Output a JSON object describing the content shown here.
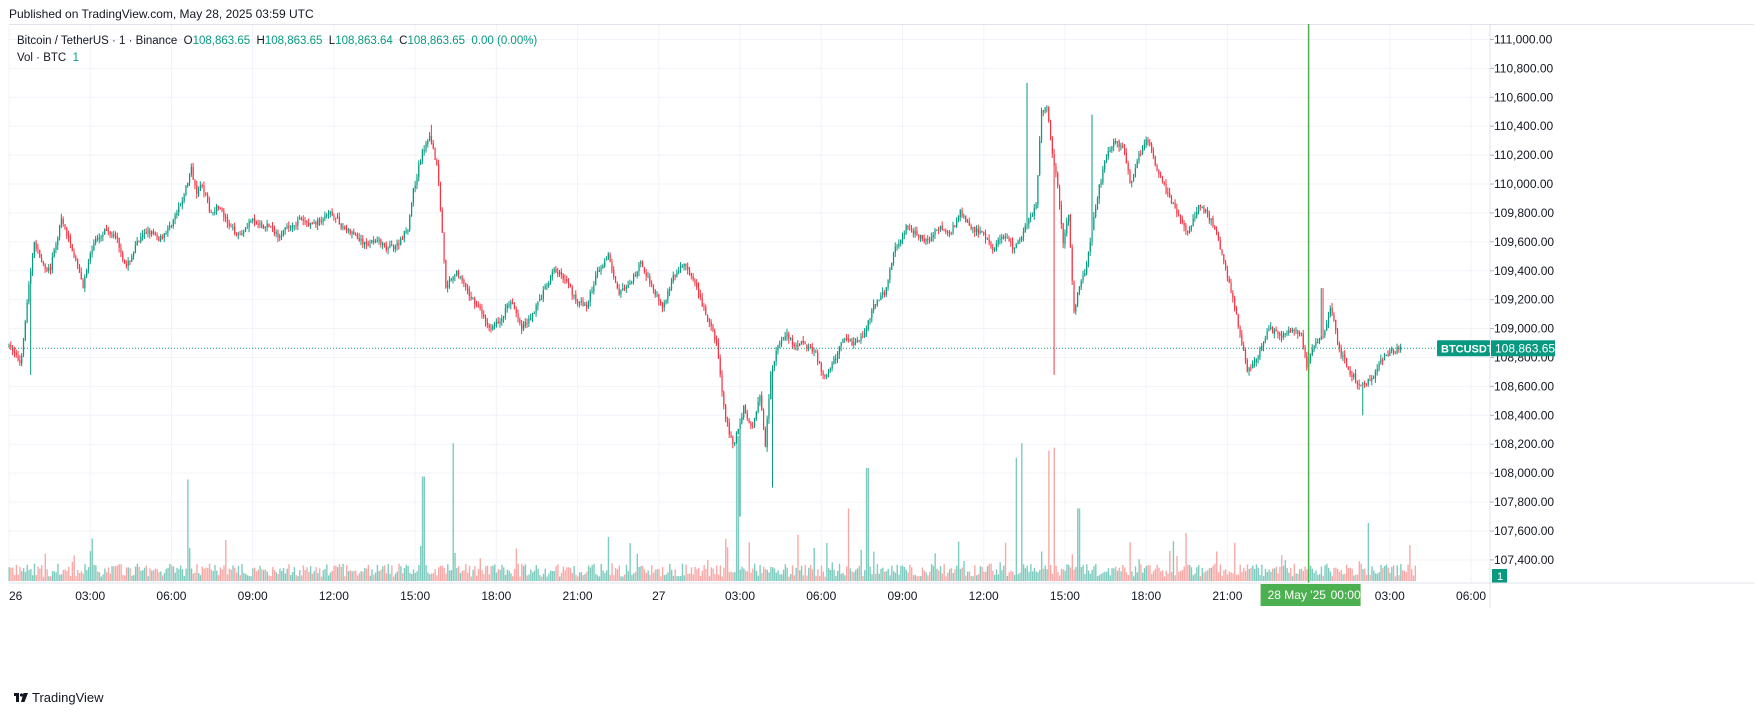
{
  "header": {
    "published": "Published on TradingView.com, May 28, 2025 03:59 UTC"
  },
  "legend": {
    "symbol": "Bitcoin / TetherUS · 1 · Binance",
    "open_label": "O",
    "open": "108,863.65",
    "high_label": "H",
    "high": "108,863.65",
    "low_label": "L",
    "low": "108,863.64",
    "close_label": "C",
    "close": "108,863.65",
    "change": "0.00 (0.00%)"
  },
  "volume_legend": {
    "label": "Vol · BTC",
    "value": "1"
  },
  "price_badge": {
    "ticker": "BTCUSDT",
    "price": "108,863.65"
  },
  "volume_badge": "1",
  "crosshair_label": {
    "date": "28 May '25",
    "time": "00:00"
  },
  "footer": {
    "brand": "TradingView"
  },
  "colors": {
    "up": "#089981",
    "down": "#f23645",
    "up_vol": "#7fcbbf",
    "down_vol": "#f7a9a7",
    "crosshair": "#4caf50",
    "grid": "#f0f3fa",
    "last_price": "#089981"
  },
  "chart_data": {
    "type": "candlestick",
    "title": "Bitcoin / TetherUS · 1 · Binance",
    "price_axis": {
      "ticks": [
        107400,
        107600,
        107800,
        108000,
        108200,
        108400,
        108600,
        108800,
        109000,
        109200,
        109400,
        109600,
        109800,
        110000,
        110200,
        110400,
        110600,
        110800,
        111000
      ],
      "tick_labels": [
        "107,400.00",
        "107,600.00",
        "107,800.00",
        "108,000.00",
        "108,200.00",
        "108,400.00",
        "108,600.00",
        "108,800.00",
        "109,000.00",
        "109,200.00",
        "109,400.00",
        "109,600.00",
        "109,800.00",
        "110,000.00",
        "110,200.00",
        "110,400.00",
        "110,600.00",
        "110,800.00",
        "111,000.00"
      ],
      "ylim": [
        107240,
        111100
      ]
    },
    "time_axis": {
      "hours": [
        0,
        3,
        6,
        9,
        12,
        15,
        18,
        21,
        24,
        27,
        30,
        33,
        36,
        39,
        42,
        45,
        48,
        51,
        54
      ],
      "labels": [
        "26",
        "03:00",
        "06:00",
        "09:00",
        "12:00",
        "15:00",
        "18:00",
        "21:00",
        "27",
        "03:00",
        "06:00",
        "09:00",
        "12:00",
        "15:00",
        "18:00",
        "21:00",
        "",
        "03:00",
        "06:00"
      ],
      "xlim_hours": [
        0,
        54.7
      ]
    },
    "last_price": 108863.65,
    "last_price_hour": 52.0,
    "crosshair_hour": 48.0,
    "price_path": {
      "hours": [
        0,
        0.2,
        0.5,
        0.8,
        1.0,
        1.2,
        1.4,
        1.6,
        2.0,
        2.4,
        2.8,
        3.2,
        3.6,
        4.0,
        4.4,
        4.8,
        5.2,
        5.6,
        6.0,
        6.4,
        6.8,
        7.0,
        7.2,
        7.5,
        7.8,
        8.2,
        8.6,
        9.0,
        9.4,
        9.6,
        10.0,
        10.4,
        10.8,
        11.2,
        11.6,
        12.0,
        12.4,
        12.8,
        13.2,
        13.6,
        14.0,
        14.4,
        14.8,
        15.0,
        15.3,
        15.6,
        15.9,
        16.2,
        16.6,
        17.0,
        17.4,
        17.8,
        18.2,
        18.6,
        19.0,
        19.4,
        19.8,
        20.2,
        20.6,
        21.0,
        21.4,
        21.8,
        22.2,
        22.6,
        23.0,
        23.4,
        23.8,
        24.2,
        24.6,
        25.0,
        25.4,
        25.8,
        26.2,
        26.5,
        26.8,
        27.0,
        27.2,
        27.5,
        27.8,
        28.0,
        28.2,
        28.5,
        28.8,
        29.1,
        29.4,
        29.8,
        30.2,
        30.6,
        30.9,
        31.2,
        31.6,
        32.0,
        32.4,
        32.8,
        33.2,
        33.6,
        34.0,
        34.4,
        34.8,
        35.2,
        35.6,
        36.0,
        36.4,
        36.8,
        37.2,
        37.6,
        38.0,
        38.2,
        38.4,
        38.6,
        38.8,
        39.0,
        39.2,
        39.4,
        39.6,
        39.8,
        40.0,
        40.3,
        40.6,
        40.9,
        41.2,
        41.5,
        41.8,
        42.1,
        42.4,
        42.8,
        43.2,
        43.6,
        44.0,
        44.3,
        44.6,
        44.9,
        45.2,
        45.5,
        45.8,
        46.2,
        46.6,
        47.0,
        47.4,
        47.8,
        48.0,
        48.3,
        48.6,
        48.9,
        49.2,
        49.6,
        50.0,
        50.4,
        50.8,
        51.2,
        51.5,
        51.8,
        52.0
      ],
      "prices": [
        108880,
        108850,
        108760,
        109300,
        109600,
        109500,
        109400,
        109420,
        109750,
        109550,
        109300,
        109600,
        109680,
        109650,
        109420,
        109590,
        109680,
        109620,
        109700,
        109850,
        110100,
        109950,
        110000,
        109800,
        109850,
        109700,
        109650,
        109750,
        109700,
        109720,
        109650,
        109700,
        109750,
        109720,
        109750,
        109800,
        109700,
        109650,
        109580,
        109620,
        109550,
        109580,
        109700,
        109950,
        110200,
        110350,
        110100,
        109300,
        109400,
        109250,
        109150,
        109000,
        109050,
        109200,
        109000,
        109100,
        109250,
        109400,
        109350,
        109200,
        109150,
        109400,
        109500,
        109250,
        109300,
        109450,
        109300,
        109150,
        109350,
        109450,
        109300,
        109100,
        108900,
        108400,
        108200,
        108300,
        108450,
        108300,
        108550,
        108200,
        108700,
        108900,
        108950,
        108870,
        108900,
        108850,
        108650,
        108800,
        108950,
        108900,
        108950,
        109150,
        109250,
        109550,
        109700,
        109650,
        109600,
        109700,
        109650,
        109800,
        109700,
        109650,
        109550,
        109650,
        109550,
        109700,
        109850,
        110500,
        110550,
        110200,
        110000,
        109600,
        109800,
        109100,
        109300,
        109400,
        109600,
        109950,
        110200,
        110300,
        110250,
        110000,
        110200,
        110300,
        110150,
        109950,
        109800,
        109650,
        109850,
        109800,
        109700,
        109500,
        109250,
        109000,
        108700,
        108800,
        109000,
        108950,
        109000,
        108950,
        108750,
        108900,
        108950,
        109150,
        108850,
        108700,
        108600,
        108650,
        108800,
        108850,
        108860
      ]
    },
    "wick_extremes": [
      {
        "hour": 0.8,
        "low": 108680
      },
      {
        "hour": 15.6,
        "high": 110410
      },
      {
        "hour": 27.0,
        "low": 107700
      },
      {
        "hour": 28.2,
        "low": 107900
      },
      {
        "hour": 37.6,
        "high": 110700
      },
      {
        "hour": 38.6,
        "low": 108680
      },
      {
        "hour": 40.0,
        "high": 110480
      },
      {
        "hour": 48.5,
        "high": 109280
      },
      {
        "hour": 50.0,
        "low": 108400
      }
    ],
    "volume_spikes": [
      {
        "hour": 6.6,
        "value": 0.7
      },
      {
        "hour": 15.3,
        "value": 0.72
      },
      {
        "hour": 16.4,
        "value": 0.95
      },
      {
        "hour": 26.9,
        "value": 1.0
      },
      {
        "hour": 31.0,
        "value": 0.5
      },
      {
        "hour": 31.7,
        "value": 0.78
      },
      {
        "hour": 37.2,
        "value": 0.85
      },
      {
        "hour": 37.4,
        "value": 0.95
      },
      {
        "hour": 38.4,
        "value": 0.9
      },
      {
        "hour": 38.6,
        "value": 0.92
      },
      {
        "hour": 39.5,
        "value": 0.5
      },
      {
        "hour": 50.2,
        "value": 0.4
      }
    ]
  }
}
